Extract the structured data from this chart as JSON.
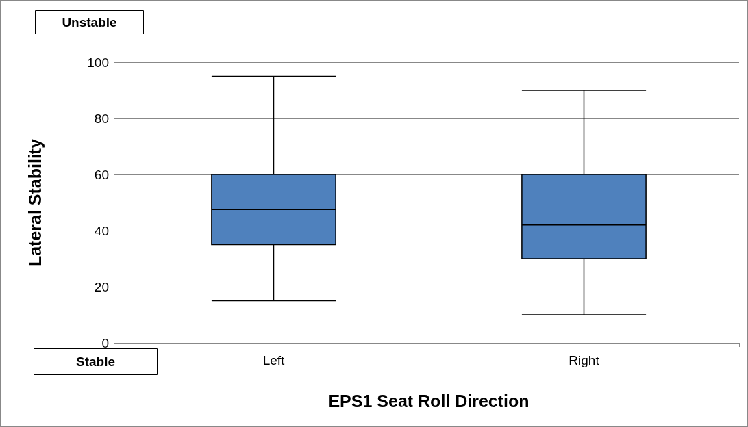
{
  "chart_data": {
    "type": "box",
    "xlabel": "EPS1 Seat Roll Direction",
    "ylabel": "Lateral Stability",
    "categories": [
      "Left",
      "Right"
    ],
    "boxes": [
      {
        "low": 15,
        "q1": 35,
        "median": 47.5,
        "q3": 60,
        "high": 95
      },
      {
        "low": 10,
        "q1": 30,
        "median": 42,
        "q3": 60,
        "high": 90
      }
    ],
    "color": "#4f81bd",
    "ylim": [
      0,
      100
    ],
    "yticks": [
      0,
      20,
      40,
      60,
      80,
      100
    ],
    "grid": "y",
    "annotations": [
      "Unstable",
      "Stable"
    ]
  }
}
